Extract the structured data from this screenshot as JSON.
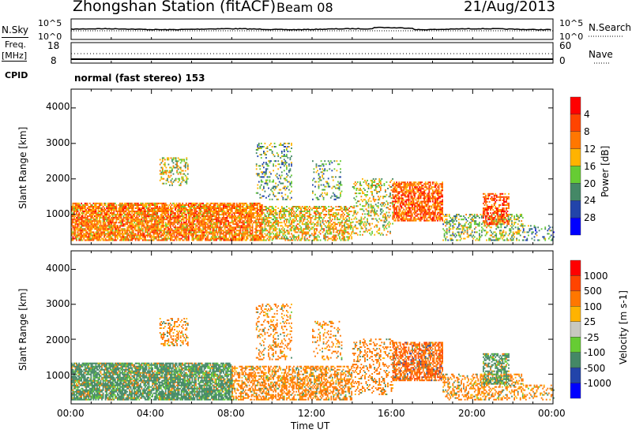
{
  "header": {
    "station": "Zhongshan Station (fitACF)",
    "beam": "Beam 08",
    "date": "21/Aug/2013"
  },
  "top_panels": {
    "nsky_label": "N.Sky",
    "nsky_ticks": [
      "10^5",
      "10^0"
    ],
    "nsearch_label": "N.Search",
    "nsearch_ticks": [
      "10^5",
      "10^0"
    ],
    "freq_label": "Freq.",
    "freq_unit": "[MHz]",
    "freq_ticks": [
      "18",
      "8"
    ],
    "nave_label": "Nave",
    "nave_ticks": [
      "60",
      "0"
    ],
    "cpid_label": "CPID",
    "cpid_value": "normal (fast stereo) 153"
  },
  "chart_data": [
    {
      "type": "heatmap",
      "name": "power",
      "ylabel": "Slant Range [km]",
      "xlabel": "",
      "ylim": [
        150,
        4530
      ],
      "xlim": [
        0,
        24
      ],
      "yticks": [
        "1000",
        "2000",
        "3000",
        "4000"
      ],
      "colorbar": {
        "label": "Power [dB]",
        "ticks": [
          "4",
          "8",
          "12",
          "16",
          "20",
          "24",
          "28"
        ],
        "colors": [
          "#0000ff",
          "#2244aa",
          "#448866",
          "#66cc33",
          "#ffb300",
          "#ff7700",
          "#ff4400",
          "#ff0000"
        ],
        "range": [
          0,
          32
        ]
      },
      "echo_regions": [
        {
          "t": [
            0,
            9.5
          ],
          "r": [
            250,
            1300
          ],
          "density": 0.8,
          "value": 22
        },
        {
          "t": [
            9.5,
            14
          ],
          "r": [
            250,
            1200
          ],
          "density": 0.55,
          "value": 18
        },
        {
          "t": [
            4.4,
            5.8
          ],
          "r": [
            1800,
            2600
          ],
          "density": 0.35,
          "value": 16
        },
        {
          "t": [
            9.2,
            11
          ],
          "r": [
            1400,
            3000
          ],
          "density": 0.25,
          "value": 12
        },
        {
          "t": [
            12,
            13.5
          ],
          "r": [
            1400,
            2500
          ],
          "density": 0.2,
          "value": 12
        },
        {
          "t": [
            14,
            16
          ],
          "r": [
            400,
            2000
          ],
          "density": 0.3,
          "value": 16
        },
        {
          "t": [
            16,
            18.5
          ],
          "r": [
            800,
            1900
          ],
          "density": 0.7,
          "value": 24
        },
        {
          "t": [
            18.5,
            22.5
          ],
          "r": [
            250,
            1000
          ],
          "density": 0.4,
          "value": 14
        },
        {
          "t": [
            20.5,
            21.8
          ],
          "r": [
            700,
            1600
          ],
          "density": 0.6,
          "value": 25
        },
        {
          "t": [
            22.5,
            24
          ],
          "r": [
            250,
            700
          ],
          "density": 0.3,
          "value": 10
        }
      ]
    },
    {
      "type": "heatmap",
      "name": "velocity",
      "ylabel": "Slant Range [km]",
      "xlabel": "Time UT",
      "ylim": [
        150,
        4530
      ],
      "xlim": [
        0,
        24
      ],
      "yticks": [
        "1000",
        "2000",
        "3000",
        "4000"
      ],
      "xticks": [
        "00:00",
        "04:00",
        "08:00",
        "12:00",
        "16:00",
        "20:00",
        "00:00"
      ],
      "colorbar": {
        "label": "Velocity [m s-1]",
        "ticks": [
          "1000",
          "500",
          "100",
          "25",
          "-25",
          "-100",
          "-500",
          "-1000"
        ],
        "colors": [
          "#0000ff",
          "#2244aa",
          "#448866",
          "#66cc33",
          "#c8c8c0",
          "#ffb300",
          "#ff7700",
          "#ff4400",
          "#ff0000"
        ]
      },
      "echo_regions": [
        {
          "t": [
            0,
            8
          ],
          "r": [
            250,
            1300
          ],
          "density": 0.8,
          "value": 150
        },
        {
          "t": [
            8,
            14
          ],
          "r": [
            250,
            1200
          ],
          "density": 0.55,
          "value": -150
        },
        {
          "t": [
            4.4,
            5.8
          ],
          "r": [
            1800,
            2600
          ],
          "density": 0.35,
          "value": -150
        },
        {
          "t": [
            9.2,
            11
          ],
          "r": [
            1400,
            3000
          ],
          "density": 0.25,
          "value": -150
        },
        {
          "t": [
            12,
            13.5
          ],
          "r": [
            1400,
            2500
          ],
          "density": 0.2,
          "value": -150
        },
        {
          "t": [
            14,
            16
          ],
          "r": [
            400,
            2000
          ],
          "density": 0.3,
          "value": -200
        },
        {
          "t": [
            16,
            18.5
          ],
          "r": [
            800,
            1900
          ],
          "density": 0.7,
          "value": -300
        },
        {
          "t": [
            18.5,
            22.5
          ],
          "r": [
            250,
            1000
          ],
          "density": 0.4,
          "value": -120
        },
        {
          "t": [
            20.5,
            21.8
          ],
          "r": [
            700,
            1600
          ],
          "density": 0.6,
          "value": 120
        },
        {
          "t": [
            22.5,
            24
          ],
          "r": [
            250,
            700
          ],
          "density": 0.3,
          "value": -120
        }
      ]
    }
  ]
}
